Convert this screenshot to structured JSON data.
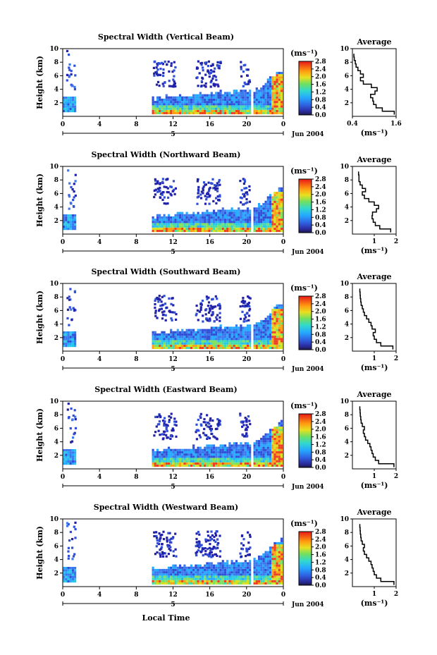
{
  "figure": {
    "x_common_label": "Local Time",
    "date_label": "Jun 2004",
    "day_label": "5"
  },
  "chart_data": [
    {
      "type": "heatmap",
      "title": "Spectral Width (Vertical Beam)",
      "ylabel": "Height (km)",
      "xlim": [
        0,
        24
      ],
      "ylim": [
        0,
        10
      ],
      "x_ticks": [
        "0",
        "4",
        "8",
        "12",
        "16",
        "20",
        "0"
      ],
      "y_ticks": [
        "2",
        "4",
        "6",
        "8",
        "10"
      ],
      "colorbar": {
        "unit": "(ms⁻¹)",
        "ticks": [
          "0.0",
          "0.4",
          "0.8",
          "1.2",
          "1.6",
          "2.0",
          "2.4",
          "2.8"
        ]
      },
      "average_profile": {
        "title": "Average",
        "xlabel": "(ms⁻¹)",
        "xlim": [
          0.4,
          1.6
        ],
        "x_ticks": [
          "0.4",
          "1.6"
        ],
        "y_ticks": [
          "2",
          "4",
          "6",
          "8",
          "10"
        ],
        "height": [
          0.5,
          1.0,
          1.5,
          2.0,
          2.5,
          3.0,
          3.5,
          4.0,
          4.5,
          5.0,
          5.5,
          6.0,
          6.5,
          7.0,
          7.5,
          8.0,
          8.5,
          9.0
        ],
        "value": [
          1.55,
          1.22,
          1.05,
          0.98,
          0.96,
          0.9,
          1.02,
          1.08,
          0.92,
          0.7,
          0.62,
          0.7,
          0.62,
          0.55,
          0.5,
          0.48,
          0.45,
          0.44
        ]
      }
    },
    {
      "type": "heatmap",
      "title": "Spectral Width (Northward Beam)",
      "ylabel": "Height (km)",
      "xlim": [
        0,
        24
      ],
      "ylim": [
        0,
        10
      ],
      "x_ticks": [
        "0",
        "4",
        "8",
        "12",
        "16",
        "20",
        "0"
      ],
      "y_ticks": [
        "2",
        "4",
        "6",
        "8",
        "10"
      ],
      "colorbar": {
        "unit": "(ms⁻¹)",
        "ticks": [
          "0.0",
          "0.4",
          "0.8",
          "1.2",
          "1.6",
          "2.0",
          "2.4",
          "2.8"
        ]
      },
      "average_profile": {
        "title": "Average",
        "xlabel": "(ms⁻¹)",
        "xlim": [
          0,
          2
        ],
        "x_ticks": [
          "1",
          "2"
        ],
        "y_ticks": [
          "2",
          "4",
          "6",
          "8",
          "10"
        ],
        "height": [
          0.5,
          1.0,
          1.5,
          2.0,
          2.5,
          3.0,
          3.5,
          4.0,
          4.5,
          5.0,
          5.5,
          6.0,
          6.5,
          7.0,
          7.5,
          8.0,
          8.5,
          9.0
        ],
        "value": [
          1.75,
          1.25,
          1.05,
          0.95,
          0.9,
          0.92,
          1.1,
          1.2,
          1.0,
          0.75,
          0.55,
          0.45,
          0.6,
          0.45,
          0.35,
          0.3,
          0.3,
          0.28
        ]
      }
    },
    {
      "type": "heatmap",
      "title": "Spectral Width (Southward Beam)",
      "ylabel": "Height (km)",
      "xlim": [
        0,
        24
      ],
      "ylim": [
        0,
        10
      ],
      "x_ticks": [
        "0",
        "4",
        "8",
        "12",
        "16",
        "20",
        "0"
      ],
      "y_ticks": [
        "2",
        "4",
        "6",
        "8",
        "10"
      ],
      "colorbar": {
        "unit": "(ms⁻¹)",
        "ticks": [
          "0.0",
          "0.4",
          "0.8",
          "1.2",
          "1.6",
          "2.0",
          "2.4",
          "2.8"
        ]
      },
      "average_profile": {
        "title": "Average",
        "xlabel": "(ms⁻¹)",
        "xlim": [
          0,
          2
        ],
        "x_ticks": [
          "1",
          "2"
        ],
        "y_ticks": [
          "2",
          "4",
          "6",
          "8",
          "10"
        ],
        "height": [
          0.5,
          1.0,
          1.5,
          2.0,
          2.5,
          3.0,
          3.5,
          4.0,
          4.5,
          5.0,
          5.5,
          6.0,
          6.5,
          7.0,
          7.5,
          8.0,
          8.5,
          9.0
        ],
        "value": [
          1.85,
          1.3,
          1.1,
          1.0,
          0.95,
          1.05,
          0.9,
          0.85,
          0.75,
          0.65,
          0.55,
          0.5,
          0.45,
          0.4,
          0.38,
          0.36,
          0.35,
          0.34
        ]
      }
    },
    {
      "type": "heatmap",
      "title": "Spectral Width (Eastward Beam)",
      "ylabel": "Height (km)",
      "xlim": [
        0,
        24
      ],
      "ylim": [
        0,
        10
      ],
      "x_ticks": [
        "0",
        "4",
        "8",
        "12",
        "16",
        "20",
        "0"
      ],
      "y_ticks": [
        "2",
        "4",
        "6",
        "8",
        "10"
      ],
      "colorbar": {
        "unit": "(ms⁻¹)",
        "ticks": [
          "0.0",
          "0.4",
          "0.8",
          "1.2",
          "1.6",
          "2.0",
          "2.4",
          "2.8"
        ]
      },
      "average_profile": {
        "title": "Average",
        "xlabel": "(ms⁻¹)",
        "xlim": [
          0,
          2
        ],
        "x_ticks": [
          "1",
          "2"
        ],
        "y_ticks": [
          "2",
          "4",
          "6",
          "8",
          "10"
        ],
        "height": [
          0.5,
          1.0,
          1.5,
          2.0,
          2.5,
          3.0,
          3.5,
          4.0,
          4.5,
          5.0,
          5.5,
          6.0,
          6.5,
          7.0,
          7.5,
          8.0,
          8.5,
          9.0
        ],
        "value": [
          1.9,
          1.2,
          1.05,
          0.95,
          0.9,
          0.85,
          0.8,
          0.7,
          0.6,
          0.55,
          0.5,
          0.55,
          0.45,
          0.4,
          0.38,
          0.36,
          0.35,
          0.34
        ]
      }
    },
    {
      "type": "heatmap",
      "title": "Spectral Width (Westward Beam)",
      "ylabel": "Height (km)",
      "xlim": [
        0,
        24
      ],
      "ylim": [
        0,
        10
      ],
      "x_ticks": [
        "0",
        "4",
        "8",
        "12",
        "16",
        "20",
        "0"
      ],
      "y_ticks": [
        "2",
        "4",
        "6",
        "8",
        "10"
      ],
      "colorbar": {
        "unit": "(ms⁻¹)",
        "ticks": [
          "0.0",
          "0.4",
          "0.8",
          "1.2",
          "1.6",
          "2.0",
          "2.4",
          "2.8"
        ]
      },
      "average_profile": {
        "title": "Average",
        "xlabel": "(ms⁻¹)",
        "xlim": [
          0,
          2
        ],
        "x_ticks": [
          "1",
          "2"
        ],
        "y_ticks": [
          "2",
          "4",
          "6",
          "8",
          "10"
        ],
        "height": [
          0.5,
          1.0,
          1.5,
          2.0,
          2.5,
          3.0,
          3.5,
          4.0,
          4.5,
          5.0,
          5.5,
          6.0,
          6.5,
          7.0,
          7.5,
          8.0,
          8.5,
          9.0
        ],
        "value": [
          1.9,
          1.3,
          1.1,
          1.0,
          0.95,
          0.9,
          0.85,
          0.75,
          0.65,
          0.55,
          0.5,
          0.55,
          0.45,
          0.4,
          0.38,
          0.36,
          0.35,
          0.34
        ]
      }
    }
  ]
}
